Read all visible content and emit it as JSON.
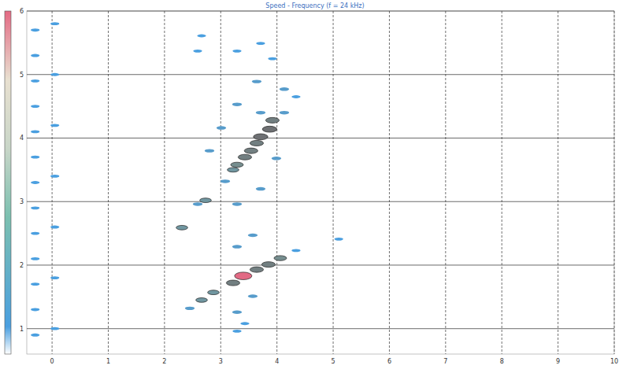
{
  "chart_data": {
    "type": "scatter",
    "title": "Speed - Frequency (f = 24 kHz)",
    "x": [
      3.92,
      3.87,
      3.71,
      3.64,
      3.54,
      3.43,
      3.29,
      3.22,
      2.73,
      2.31,
      4.06,
      3.85,
      3.64,
      3.4,
      3.22,
      2.87,
      2.66,
      2.66,
      3.71,
      3.92,
      3.29,
      2.59,
      3.64,
      4.13,
      4.34,
      3.29,
      3.71,
      3.01,
      4.13,
      2.8,
      3.99,
      3.08,
      3.71,
      2.59,
      3.29,
      3.57,
      3.29,
      4.34,
      2.45,
      3.57,
      3.29,
      3.43,
      3.29,
      5.1,
      -0.3,
      -0.3,
      -0.3,
      -0.3,
      -0.3,
      -0.3,
      -0.3,
      -0.3,
      -0.3,
      -0.3,
      -0.3,
      -0.3,
      -0.3,
      0.05,
      0.05,
      0.05,
      0.05,
      0.05,
      0.05,
      0.05
    ],
    "values": [
      4.28,
      4.14,
      4.02,
      3.92,
      3.8,
      3.7,
      3.58,
      3.5,
      3.02,
      2.59,
      2.11,
      2.01,
      1.93,
      1.83,
      1.72,
      1.57,
      1.45,
      5.61,
      5.49,
      5.25,
      5.37,
      5.37,
      4.89,
      4.77,
      4.65,
      4.53,
      4.4,
      4.16,
      4.4,
      3.8,
      3.68,
      3.32,
      3.2,
      2.96,
      2.96,
      2.47,
      2.29,
      2.23,
      1.32,
      1.51,
      1.26,
      1.08,
      0.96,
      2.41,
      0.9,
      1.3,
      1.7,
      2.1,
      2.5,
      2.9,
      3.3,
      3.7,
      4.1,
      4.5,
      4.9,
      5.3,
      5.7,
      1.0,
      1.8,
      2.6,
      3.4,
      4.2,
      5.0,
      5.8
    ],
    "counts": [
      6,
      7,
      7,
      6,
      6,
      6,
      5,
      4,
      4,
      4,
      5,
      6,
      6,
      10,
      6,
      4,
      4,
      1,
      1,
      1,
      1,
      1,
      2,
      2,
      1,
      2,
      2,
      2,
      2,
      2,
      2,
      2,
      2,
      2,
      2,
      2,
      2,
      1,
      2,
      2,
      2,
      1,
      1,
      1,
      1,
      1,
      1,
      1,
      1,
      1,
      1,
      1,
      1,
      1,
      1,
      1,
      1,
      1,
      1,
      1,
      1,
      1,
      1,
      1
    ],
    "color_range": [
      0,
      10
    ],
    "xlim": [
      -0.45,
      10
    ],
    "ylim": [
      0.6,
      6
    ],
    "xticks": [
      0,
      1,
      2,
      3,
      4,
      5,
      6,
      7,
      8,
      9,
      10
    ],
    "yticks": [
      1,
      2,
      3,
      4,
      5,
      6
    ],
    "grid": true
  }
}
